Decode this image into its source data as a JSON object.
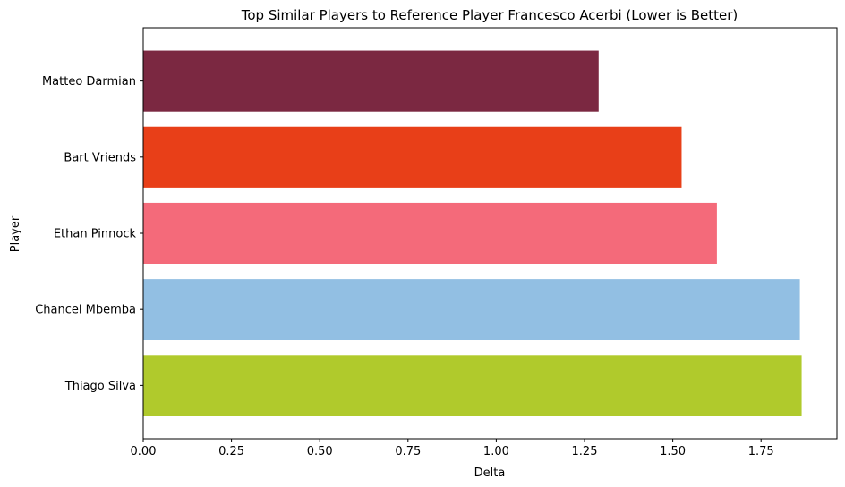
{
  "chart_data": {
    "type": "bar",
    "orientation": "horizontal",
    "title": "Top Similar Players to Reference Player Francesco Acerbi (Lower is Better)",
    "xlabel": "Delta",
    "ylabel": "Player",
    "categories": [
      "Matteo Darmian",
      "Bart Vriends",
      "Ethan Pinnock",
      "Chancel Mbemba",
      "Thiago Silva"
    ],
    "values": [
      1.29,
      1.525,
      1.625,
      1.86,
      1.865
    ],
    "colors": [
      "#7b2841",
      "#e83f18",
      "#f46a7a",
      "#92bfe3",
      "#b0ca2c"
    ],
    "xlim": [
      0,
      1.965
    ],
    "xticks": [
      0.0,
      0.25,
      0.5,
      0.75,
      1.0,
      1.25,
      1.5,
      1.75
    ],
    "xtick_labels": [
      "0.00",
      "0.25",
      "0.50",
      "0.75",
      "1.00",
      "1.25",
      "1.50",
      "1.75"
    ],
    "grid": false,
    "legend": "none"
  }
}
